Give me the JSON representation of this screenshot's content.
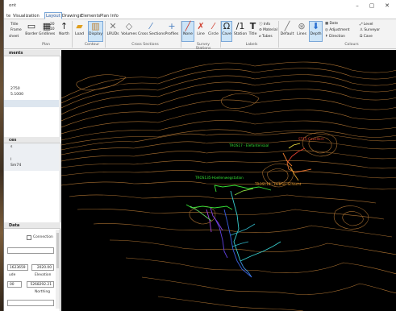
{
  "window": {
    "title": "ont"
  },
  "menu": {
    "tabs": [
      "te",
      "Visualization",
      "Layout",
      "Drawings",
      "Elements",
      "Plan",
      "Info"
    ],
    "active_index": 2
  },
  "ribbon": {
    "file_buttons": [
      "Title",
      "Frame",
      "sheet"
    ],
    "plan_buttons": {
      "border": "Border",
      "gridlines": "Gridlines",
      "north": "North",
      "group": "Plan",
      "scale_top": "20",
      "scale_bottom": "10"
    },
    "contour": {
      "load": "Load",
      "display": "Display",
      "group": "Contour"
    },
    "cross_sections": {
      "lrud": "LRUDs",
      "volumes": "Volumes",
      "cross": "Cross Sections",
      "profiles": "Profiles",
      "group": "Cross Sections"
    },
    "survey_stations": {
      "none": "None",
      "line": "Line",
      "circle": "Circle",
      "group": "Survey Stations"
    },
    "labels": {
      "cave": "Cave",
      "station": "Station",
      "title": "Title",
      "info": "Info",
      "material": "Material",
      "tubes": "Tubes",
      "group": "Labels"
    },
    "colours": {
      "default": "Default",
      "lines": "Lines",
      "depth": "Depth",
      "date": "Date",
      "adjustment": "Adjustment",
      "direction": "Direction",
      "level": "Level",
      "surveyor": "Surveyor",
      "cave": "Cave",
      "group": "Colours"
    }
  },
  "left_panel": {
    "section1": "ments",
    "values": [
      "2750",
      "5.1000"
    ],
    "section2": "ces",
    "items": [
      "s",
      "",
      "l",
      "Sm74"
    ],
    "data_section": "Data",
    "connection_label": "Connection",
    "coords": {
      "value_a": "1623659",
      "value_b": "2020.00",
      "label_a": "ude",
      "label_b": "Elevation",
      "value_c": "00",
      "value_d": "5268292.21",
      "label_d": "Northing"
    }
  },
  "viewport": {
    "labels": [
      {
        "text": "TROS17 - Elefantensaal",
        "color": "#36e036"
      },
      {
        "text": "ST15-Cavellern",
        "color": "#e04030"
      },
      {
        "text": "TROS135-Hoellenwegstation",
        "color": "#36e036"
      },
      {
        "text": "TROS110 - Leibner Schacht",
        "color": "#f0a030"
      }
    ]
  }
}
